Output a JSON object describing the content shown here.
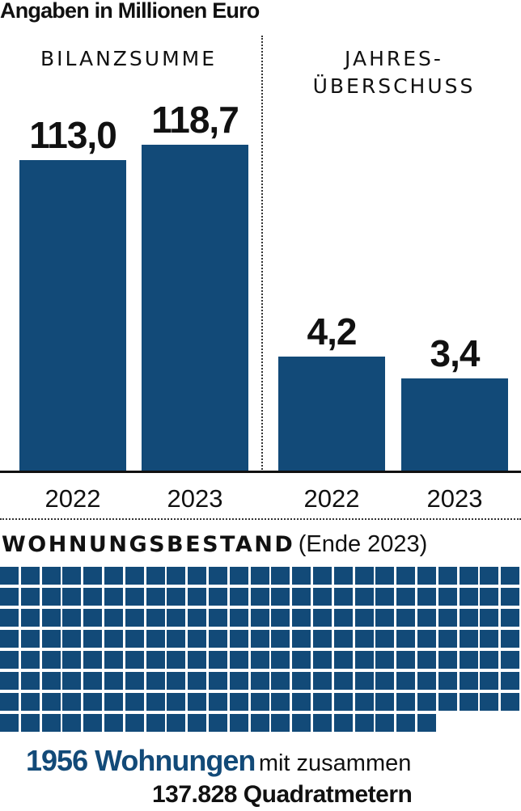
{
  "header": {
    "subtitle": "Angaben in Millionen Euro"
  },
  "colors": {
    "bar": "#124a78",
    "axis": "#111111",
    "text": "#111111"
  },
  "chart_data": [
    {
      "type": "bar",
      "title": "BILANZSUMME",
      "categories": [
        "2022",
        "2023"
      ],
      "values": [
        113.0,
        118.7
      ],
      "value_labels": [
        "113,0",
        "118,7"
      ],
      "unit": "Millionen Euro"
    },
    {
      "type": "bar",
      "title_lines": [
        "JAHRES-",
        "ÜBERSCHUSS"
      ],
      "categories": [
        "2022",
        "2023"
      ],
      "values": [
        4.2,
        3.4
      ],
      "value_labels": [
        "4,2",
        "3,4"
      ],
      "unit": "Millionen Euro"
    }
  ],
  "housing": {
    "title_bold": "WOHNUNGSBESTAND",
    "title_normal": "(Ende 2023)",
    "waffle": {
      "columns": 25,
      "full_rows": 7,
      "last_row_cells": 21,
      "total_cells": 196
    },
    "count_label": "1956 Wohnungen",
    "count_suffix": "mit zusammen",
    "area_label": "137.828 Quadratmetern"
  }
}
